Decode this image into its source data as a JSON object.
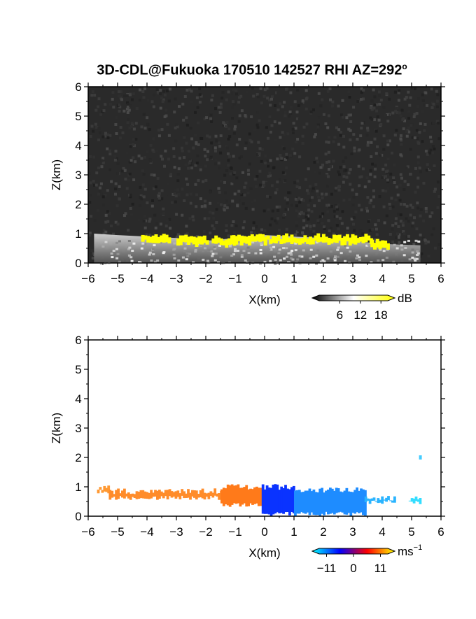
{
  "figure": {
    "title": "3D-CDL@Fukuoka 170510 142527 RHI AZ=292",
    "title_superscript": "o"
  },
  "chart_data": [
    {
      "type": "heatmap",
      "name": "reflectivity-rhi",
      "xlabel": "X(km)",
      "ylabel": "Z(km)",
      "xlim": [
        -6,
        6
      ],
      "ylim": [
        0,
        6
      ],
      "xticks": [
        "-6",
        "-5",
        "-4",
        "-3",
        "-2",
        "-1",
        "0",
        "1",
        "2",
        "3",
        "4",
        "5",
        "6"
      ],
      "yticks": [
        "0",
        "1",
        "2",
        "3",
        "4",
        "5",
        "6"
      ],
      "background_color": "#2a2a2a",
      "colorbar": {
        "unit": "dB",
        "ticks": [
          "6",
          "12",
          "18"
        ],
        "range": [
          0,
          20
        ],
        "colors": [
          "#000000",
          "#ffffff",
          "#ffff00"
        ]
      },
      "layer_top_profile": {
        "x": [
          -5.8,
          -5,
          -4,
          -3,
          -2,
          -1,
          0,
          1,
          2,
          3,
          4,
          5.3
        ],
        "z": [
          1.0,
          0.95,
          0.9,
          0.85,
          0.75,
          0.85,
          0.95,
          0.9,
          0.85,
          0.75,
          0.65,
          0.6
        ]
      },
      "high_echo_color": "#ffff00",
      "high_echo_segments": [
        {
          "x": [
            -4.2,
            -3.3
          ],
          "z": 0.82
        },
        {
          "x": [
            -3.0,
            -2.0
          ],
          "z": 0.77
        },
        {
          "x": [
            -1.8,
            -1.0
          ],
          "z": 0.72
        },
        {
          "x": [
            -1.2,
            3.6
          ],
          "z": 0.8
        },
        {
          "x": [
            3.6,
            4.2
          ],
          "z": 0.6
        }
      ]
    },
    {
      "type": "heatmap",
      "name": "doppler-velocity-rhi",
      "xlabel": "X(km)",
      "ylabel": "Z(km)",
      "xlim": [
        -6,
        6
      ],
      "ylim": [
        0,
        6
      ],
      "xticks": [
        "-6",
        "-5",
        "-4",
        "-3",
        "-2",
        "-1",
        "0",
        "1",
        "2",
        "3",
        "4",
        "5",
        "6"
      ],
      "yticks": [
        "0",
        "1",
        "2",
        "3",
        "4",
        "5",
        "6"
      ],
      "background_color": "#ffffff",
      "colorbar": {
        "unit": "ms",
        "unit_superscript": "-1",
        "ticks": [
          "-11",
          "0",
          "11"
        ],
        "range": [
          -14,
          14
        ],
        "colors": [
          "#00ffff",
          "#0000ff",
          "#ff0000",
          "#ffff00"
        ]
      },
      "regions": [
        {
          "x": [
            -5.7,
            -5.3
          ],
          "z": [
            0.75,
            1.05
          ],
          "color": "#ff9933"
        },
        {
          "x": [
            -5.3,
            -1.5
          ],
          "z": [
            0.55,
            0.95
          ],
          "color": "#ff8c2a"
        },
        {
          "x": [
            -1.5,
            -0.1
          ],
          "z": [
            0.3,
            1.1
          ],
          "color": "#ff7a1a"
        },
        {
          "x": [
            -0.1,
            1.0
          ],
          "z": [
            0.0,
            1.1
          ],
          "color": "#0a33ff"
        },
        {
          "x": [
            1.0,
            3.4
          ],
          "z": [
            0.0,
            1.0
          ],
          "color": "#1e8cff"
        },
        {
          "x": [
            3.4,
            4.4
          ],
          "z": [
            0.4,
            0.7
          ],
          "color": "#2ab4ff"
        },
        {
          "x": [
            4.9,
            5.3
          ],
          "z": [
            0.4,
            0.7
          ],
          "color": "#33ddff"
        }
      ],
      "isolated_points": [
        {
          "x": 5.3,
          "z": 2.0,
          "color": "#44ccff"
        }
      ]
    }
  ]
}
